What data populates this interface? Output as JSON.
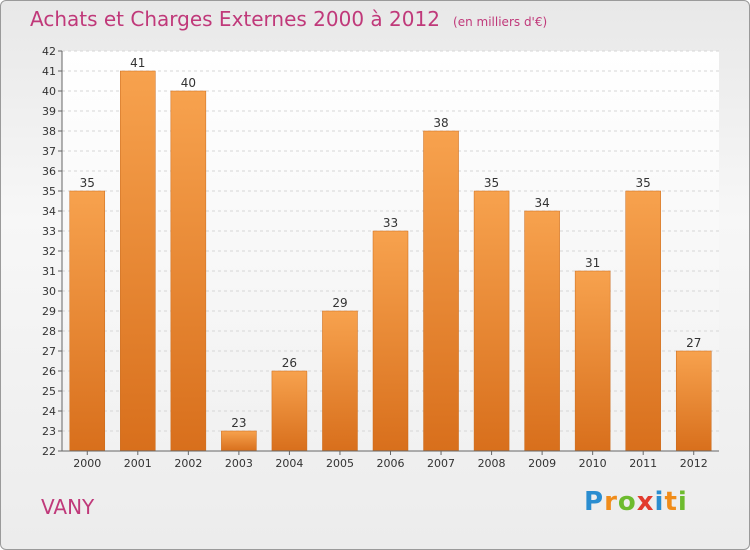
{
  "header": {
    "title": "Achats et Charges Externes 2000 à 2012",
    "unit": "(en milliers d'€)"
  },
  "commune": "VANY",
  "logo": {
    "letters": [
      "P",
      "r",
      "o",
      "x",
      "i",
      "t",
      "i"
    ],
    "colors": [
      "#2a8dd0",
      "#f08c1a",
      "#6dbb2e",
      "#e23b2e",
      "#2a8dd0",
      "#f08c1a",
      "#6dbb2e"
    ]
  },
  "chart_data": {
    "type": "bar",
    "title": "Achats et Charges Externes 2000 à 2012",
    "subtitle": "(en milliers d'€)",
    "categories": [
      "2000",
      "2001",
      "2002",
      "2003",
      "2004",
      "2005",
      "2006",
      "2007",
      "2008",
      "2009",
      "2010",
      "2011",
      "2012"
    ],
    "values": [
      35,
      41,
      40,
      23,
      26,
      29,
      33,
      38,
      35,
      34,
      31,
      35,
      27
    ],
    "ylim": [
      22,
      42
    ],
    "yticks": [
      22,
      23,
      24,
      25,
      26,
      27,
      28,
      29,
      30,
      31,
      32,
      33,
      34,
      35,
      36,
      37,
      38,
      39,
      40,
      41,
      42
    ],
    "grid": true,
    "bar_color": "#f0903a"
  }
}
